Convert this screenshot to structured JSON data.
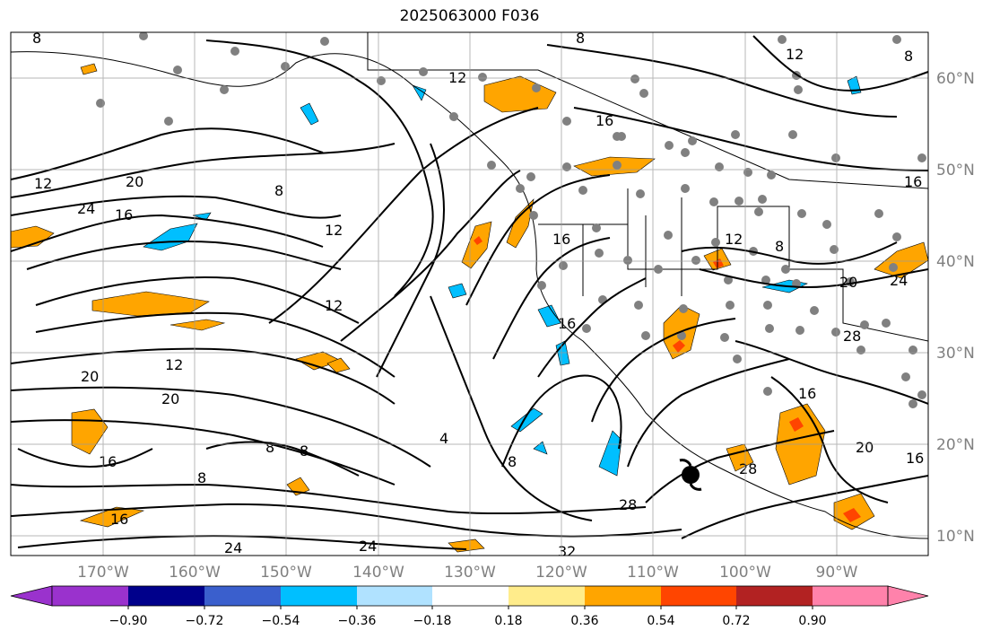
{
  "title": "2025063000 F036",
  "map": {
    "lon_labels": [
      "170°W",
      "160°W",
      "150°W",
      "140°W",
      "130°W",
      "120°W",
      "110°W",
      "100°W",
      "90°W"
    ],
    "lat_labels": [
      "60°N",
      "50°N",
      "40°N",
      "30°N",
      "20°N",
      "10°N"
    ],
    "contour_labels": [
      {
        "text": "8"
      },
      {
        "text": "12"
      },
      {
        "text": "16"
      },
      {
        "text": "20"
      },
      {
        "text": "24"
      },
      {
        "text": "12"
      },
      {
        "text": "8"
      },
      {
        "text": "12"
      },
      {
        "text": "12"
      },
      {
        "text": "12"
      },
      {
        "text": "20"
      },
      {
        "text": "20"
      },
      {
        "text": "16"
      },
      {
        "text": "16"
      },
      {
        "text": "8"
      },
      {
        "text": "8"
      },
      {
        "text": "8"
      },
      {
        "text": "4"
      },
      {
        "text": "8"
      },
      {
        "text": "28"
      },
      {
        "text": "16"
      },
      {
        "text": "24"
      },
      {
        "text": "24"
      },
      {
        "text": "32"
      },
      {
        "text": "16"
      },
      {
        "text": "16"
      },
      {
        "text": "12"
      },
      {
        "text": "8"
      },
      {
        "text": "20"
      },
      {
        "text": "24"
      },
      {
        "text": "28"
      },
      {
        "text": "16"
      },
      {
        "text": "20"
      },
      {
        "text": "16"
      },
      {
        "text": "28"
      },
      {
        "text": "8"
      },
      {
        "text": "12"
      },
      {
        "text": "16"
      },
      {
        "text": "8"
      }
    ]
  },
  "colorbar": {
    "ticks": [
      "−0.90",
      "−0.72",
      "−0.54",
      "−0.36",
      "−0.18",
      "0.18",
      "0.36",
      "0.54",
      "0.72",
      "0.90"
    ],
    "colors": [
      "#9a32cd",
      "#00008b",
      "#3a5fcd",
      "#00bfff",
      "#b0e2ff",
      "#ffffff",
      "#ffec8b",
      "#ffa500",
      "#ff4500",
      "#b22222",
      "#ff82ab"
    ]
  }
}
